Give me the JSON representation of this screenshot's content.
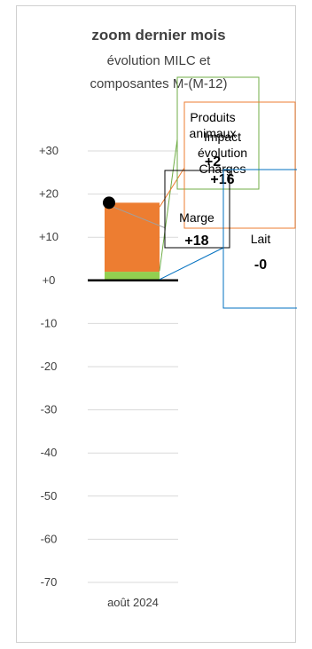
{
  "chart_data": {
    "type": "bar",
    "title": "zoom dernier mois",
    "subtitle_lines": [
      "évolution MILC et",
      "composantes M-(M-12)"
    ],
    "categories": [
      "août 2024"
    ],
    "yticks": [
      "+30",
      "+20",
      "+10",
      "+0",
      "-10",
      "-20",
      "-30",
      "-40",
      "-50",
      "-60",
      "-70"
    ],
    "ylim": [
      -70,
      30
    ],
    "grid": true,
    "series": [
      {
        "name": "Produits animaux",
        "values": [
          2
        ],
        "color": "#92d050"
      },
      {
        "name": "Impact évolution Charges",
        "values": [
          16
        ],
        "color": "#ed7d31"
      },
      {
        "name": "Lait",
        "values": [
          0
        ],
        "color": "#4472c4"
      }
    ],
    "marge": {
      "label": "Marge",
      "value": 18,
      "color": "#000000"
    },
    "labels": [
      {
        "lines": [
          "Produits",
          "animaux"
        ],
        "value": "+2",
        "border": "#70ad47"
      },
      {
        "lines": [
          "Impact",
          "évolution",
          "Charges"
        ],
        "value": "+16",
        "border": "#ed7d31"
      },
      {
        "lines": [
          "Marge"
        ],
        "value": "+18",
        "border": "#000000"
      },
      {
        "lines": [
          "Lait"
        ],
        "value": "-0",
        "border": "#0070c0"
      }
    ]
  }
}
